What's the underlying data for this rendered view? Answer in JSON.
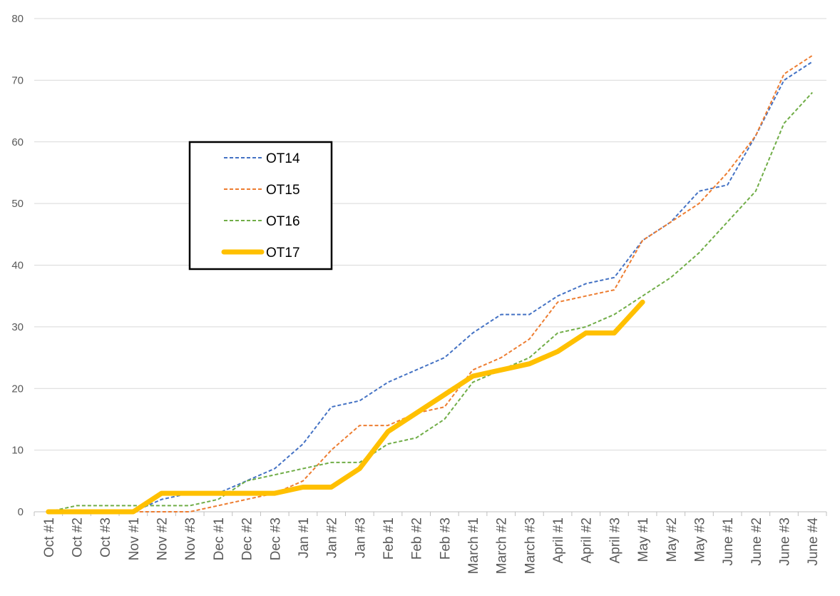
{
  "chart_data": {
    "type": "line",
    "title": "",
    "xlabel": "",
    "ylabel": "",
    "ylim": [
      0,
      80
    ],
    "yticks": [
      0,
      10,
      20,
      30,
      40,
      50,
      60,
      70,
      80
    ],
    "grid": true,
    "legend_position": "inside-left",
    "categories": [
      "Oct #1",
      "Oct #2",
      "Oct #3",
      "Nov #1",
      "Nov #2",
      "Nov #3",
      "Dec #1",
      "Dec #2",
      "Dec #3",
      "Jan #1",
      "Jan #2",
      "Jan #3",
      "Feb #1",
      "Feb #2",
      "Feb #3",
      "March #1",
      "March #2",
      "March #3",
      "April #1",
      "April #2",
      "April #3",
      "May #1",
      "May #2",
      "May #3",
      "June #1",
      "June #2",
      "June #3",
      "June #4"
    ],
    "series": [
      {
        "name": "OT14",
        "color": "#4472C4",
        "style": "dashed",
        "values": [
          0,
          0,
          0,
          0,
          2,
          3,
          3,
          5,
          7,
          11,
          17,
          18,
          21,
          23,
          25,
          29,
          32,
          32,
          35,
          37,
          38,
          44,
          47,
          52,
          53,
          61,
          70,
          73
        ]
      },
      {
        "name": "OT15",
        "color": "#ED7D31",
        "style": "dashed",
        "values": [
          0,
          0,
          0,
          0,
          0,
          0,
          1,
          2,
          3,
          5,
          10,
          14,
          14,
          16,
          17,
          23,
          25,
          28,
          34,
          35,
          36,
          44,
          47,
          50,
          55,
          61,
          71,
          74
        ]
      },
      {
        "name": "OT16",
        "color": "#70AD47",
        "style": "dashed",
        "values": [
          0,
          1,
          1,
          1,
          1,
          1,
          2,
          5,
          6,
          7,
          8,
          8,
          11,
          12,
          15,
          21,
          23,
          25,
          29,
          30,
          32,
          35,
          38,
          42,
          47,
          52,
          63,
          68
        ]
      },
      {
        "name": "OT17",
        "color": "#FFC000",
        "style": "solid-thick",
        "values": [
          0,
          0,
          0,
          0,
          3,
          3,
          3,
          3,
          3,
          4,
          4,
          7,
          13,
          16,
          19,
          22,
          23,
          24,
          26,
          29,
          29,
          34,
          null,
          null,
          null,
          null,
          null,
          null
        ]
      }
    ]
  }
}
